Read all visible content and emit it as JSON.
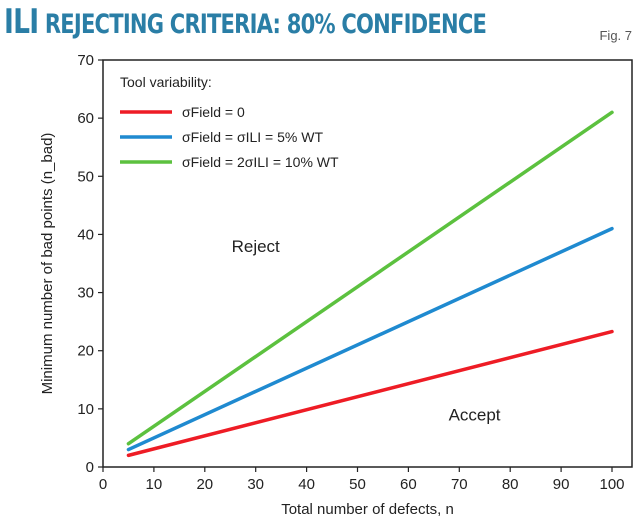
{
  "header": {
    "title_prefix": "ILI",
    "title_rest": "REJECTING CRITERIA: 80% CONFIDENCE",
    "fig_label": "Fig. 7"
  },
  "chart_data": {
    "type": "line",
    "title": "ILI REJECTING CRITERIA: 80% CONFIDENCE",
    "xlabel": "Total number of defects, n",
    "ylabel": "Minimum number of bad points (n_bad)",
    "xlim": [
      0,
      102.5
    ],
    "ylim": [
      0,
      70
    ],
    "xticks": [
      0,
      10,
      20,
      30,
      40,
      50,
      60,
      70,
      80,
      90,
      100
    ],
    "yticks": [
      0,
      10,
      20,
      30,
      40,
      50,
      60,
      70
    ],
    "grid": false,
    "legend": {
      "title": "Tool variability:",
      "placement": "top-left"
    },
    "annotations": [
      {
        "text": "Reject",
        "x": 30,
        "y": 37
      },
      {
        "text": "Accept",
        "x": 73,
        "y": 8
      }
    ],
    "series": [
      {
        "name": "σField = 0",
        "color": "#ee1c25",
        "x": [
          5,
          100
        ],
        "y": [
          2,
          23.3
        ]
      },
      {
        "name": "σField = σILI = 5% WT",
        "color": "#1f8ad0",
        "x": [
          5,
          100
        ],
        "y": [
          3,
          41
        ]
      },
      {
        "name": "σField = 2σILI = 10% WT",
        "color": "#5cc13f",
        "x": [
          5,
          100
        ],
        "y": [
          4,
          61
        ]
      }
    ]
  }
}
